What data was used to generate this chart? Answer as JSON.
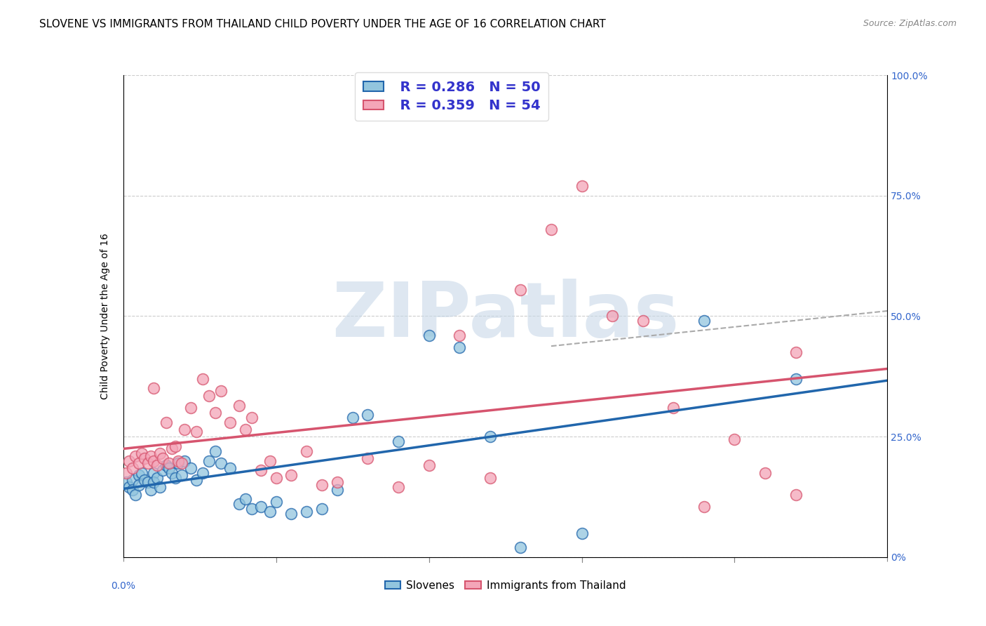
{
  "title": "SLOVENE VS IMMIGRANTS FROM THAILAND CHILD POVERTY UNDER THE AGE OF 16 CORRELATION CHART",
  "source": "Source: ZipAtlas.com",
  "ylabel": "Child Poverty Under the Age of 16",
  "xlim": [
    0.0,
    0.25
  ],
  "ylim": [
    0.0,
    1.0
  ],
  "blue_color": "#92c5de",
  "pink_color": "#f4a5b8",
  "blue_line_color": "#2166ac",
  "pink_line_color": "#d6546e",
  "legend_R_blue": "R = 0.286",
  "legend_N_blue": "N = 50",
  "legend_R_pink": "R = 0.359",
  "legend_N_pink": "N = 54",
  "legend_text_color": "#3333cc",
  "title_fontsize": 11,
  "axis_label_fontsize": 10,
  "tick_fontsize": 10,
  "watermark_color": "#c8d8e8",
  "slovenes_x": [
    0.001,
    0.002,
    0.003,
    0.003,
    0.004,
    0.005,
    0.005,
    0.006,
    0.007,
    0.008,
    0.009,
    0.01,
    0.01,
    0.011,
    0.012,
    0.013,
    0.014,
    0.015,
    0.016,
    0.017,
    0.018,
    0.019,
    0.02,
    0.022,
    0.024,
    0.026,
    0.028,
    0.03,
    0.032,
    0.035,
    0.038,
    0.04,
    0.042,
    0.045,
    0.048,
    0.05,
    0.055,
    0.06,
    0.065,
    0.07,
    0.075,
    0.08,
    0.09,
    0.1,
    0.11,
    0.12,
    0.13,
    0.15,
    0.19,
    0.22
  ],
  "slovenes_y": [
    0.155,
    0.145,
    0.16,
    0.14,
    0.13,
    0.17,
    0.15,
    0.175,
    0.16,
    0.155,
    0.14,
    0.175,
    0.155,
    0.165,
    0.145,
    0.18,
    0.19,
    0.185,
    0.175,
    0.165,
    0.195,
    0.17,
    0.2,
    0.185,
    0.16,
    0.175,
    0.2,
    0.22,
    0.195,
    0.185,
    0.11,
    0.12,
    0.1,
    0.105,
    0.095,
    0.115,
    0.09,
    0.095,
    0.1,
    0.14,
    0.29,
    0.295,
    0.24,
    0.46,
    0.435,
    0.25,
    0.02,
    0.05,
    0.49,
    0.37
  ],
  "thailand_x": [
    0.001,
    0.002,
    0.003,
    0.004,
    0.005,
    0.006,
    0.007,
    0.008,
    0.009,
    0.01,
    0.011,
    0.012,
    0.013,
    0.014,
    0.015,
    0.016,
    0.017,
    0.018,
    0.019,
    0.02,
    0.022,
    0.024,
    0.026,
    0.028,
    0.03,
    0.032,
    0.035,
    0.038,
    0.04,
    0.042,
    0.045,
    0.048,
    0.05,
    0.055,
    0.06,
    0.065,
    0.07,
    0.08,
    0.09,
    0.1,
    0.11,
    0.12,
    0.13,
    0.14,
    0.15,
    0.16,
    0.17,
    0.18,
    0.19,
    0.2,
    0.21,
    0.22,
    0.01,
    0.22
  ],
  "thailand_y": [
    0.175,
    0.2,
    0.185,
    0.21,
    0.195,
    0.215,
    0.205,
    0.195,
    0.21,
    0.2,
    0.19,
    0.215,
    0.205,
    0.28,
    0.195,
    0.225,
    0.23,
    0.2,
    0.195,
    0.265,
    0.31,
    0.26,
    0.37,
    0.335,
    0.3,
    0.345,
    0.28,
    0.315,
    0.265,
    0.29,
    0.18,
    0.2,
    0.165,
    0.17,
    0.22,
    0.15,
    0.155,
    0.205,
    0.145,
    0.19,
    0.46,
    0.165,
    0.555,
    0.68,
    0.77,
    0.5,
    0.49,
    0.31,
    0.105,
    0.245,
    0.175,
    0.425,
    0.35,
    0.13
  ]
}
